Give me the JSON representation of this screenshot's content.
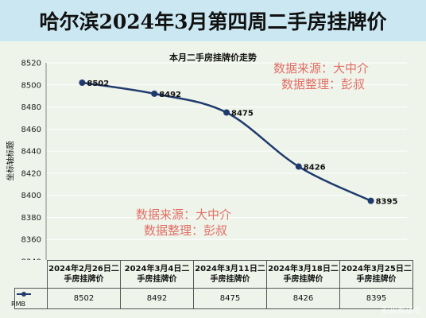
{
  "header": {
    "title": "哈尔滨2024年3月第四周二手房挂牌价"
  },
  "watermark": {
    "line1": "数据来源：大中介",
    "line2": "数据整理：彭叔"
  },
  "corner_watermark": "彩故看楼市",
  "colors": {
    "banner": "#cbe8f2",
    "line": "#1f3a6e",
    "watermark": "#e0584f",
    "plot_bg": "#eef4ea"
  },
  "chart_data": {
    "type": "line",
    "title": "本月二手房挂牌价走势",
    "xlabel": "",
    "ylabel": "坐标轴标题",
    "categories": [
      "2024年2月26日二手房挂牌价",
      "2024年3月4日二手房挂牌价",
      "2024年3月11日二手房挂牌价",
      "2024年3月18日二手房挂牌价",
      "2024年3月25日二手房挂牌价"
    ],
    "series": [
      {
        "name": "RMB",
        "values": [
          8502,
          8492,
          8475,
          8426,
          8395
        ]
      }
    ],
    "ylim": [
      8340,
      8520
    ],
    "yticks": [
      8340,
      8360,
      8380,
      8400,
      8420,
      8440,
      8460,
      8480,
      8500,
      8520
    ],
    "grid": true,
    "data_labels": true,
    "legend": "table-row"
  }
}
